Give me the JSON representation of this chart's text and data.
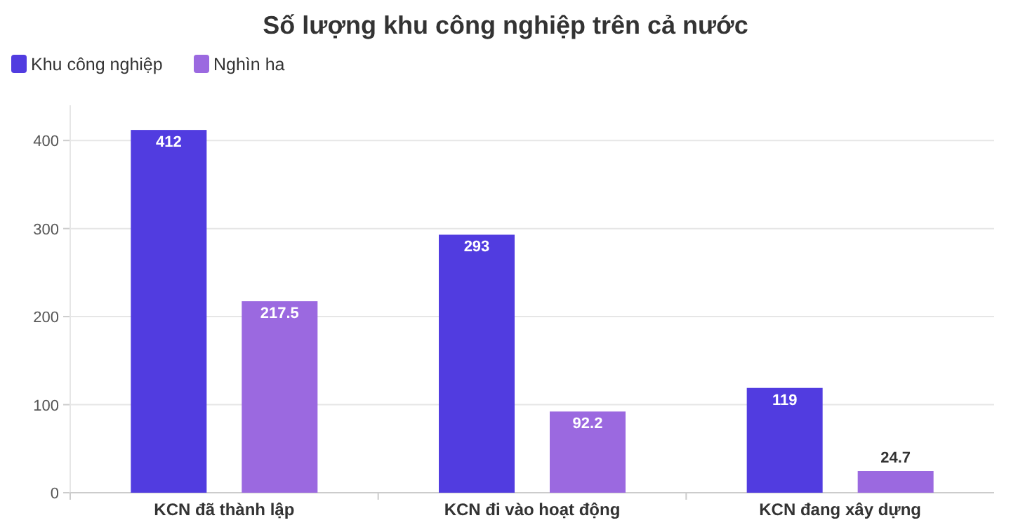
{
  "chart_data": {
    "type": "bar",
    "title": "Số lượng khu công nghiệp trên cả nước",
    "categories": [
      "KCN đã thành lập",
      "KCN đi vào hoạt động",
      "KCN đang xây dựng"
    ],
    "series": [
      {
        "name": "Khu công nghiệp",
        "color": "#513ce0",
        "values": [
          412,
          293,
          119
        ]
      },
      {
        "name": "Nghìn ha",
        "color": "#9b69e0",
        "values": [
          217.5,
          92.2,
          24.7
        ]
      }
    ],
    "ylim": [
      0,
      440
    ],
    "yticks": [
      0,
      100,
      200,
      300,
      400
    ],
    "grid": "y",
    "legend": "top left",
    "data_labels": true
  }
}
